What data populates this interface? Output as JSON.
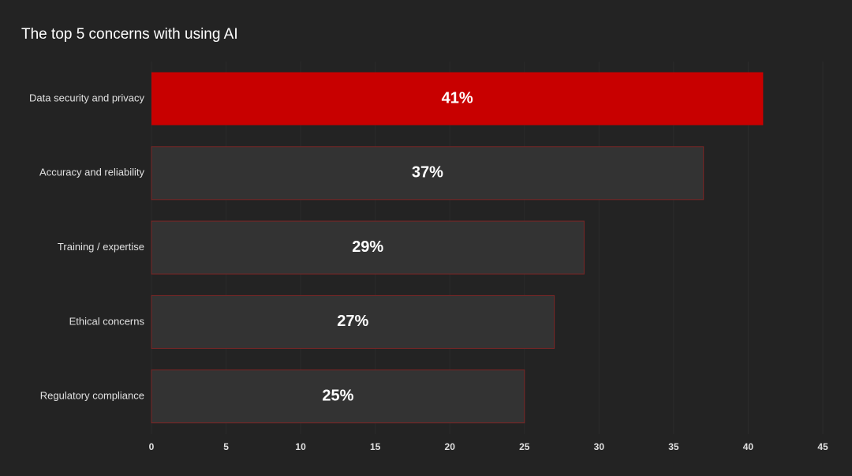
{
  "chart_data": {
    "type": "bar",
    "orientation": "horizontal",
    "title": "The top 5 concerns with using AI",
    "categories": [
      "Data security and privacy",
      "Accuracy and reliability",
      "Training / expertise",
      "Ethical concerns",
      "Regulatory compliance"
    ],
    "values": [
      41,
      37,
      29,
      27,
      25
    ],
    "value_labels": [
      "41%",
      "37%",
      "29%",
      "27%",
      "25%"
    ],
    "colors": [
      "#c80000",
      "#333333",
      "#333333",
      "#333333",
      "#333333"
    ],
    "xlim": [
      0,
      45
    ],
    "xticks": [
      0,
      5,
      10,
      15,
      20,
      25,
      30,
      35,
      40,
      45
    ],
    "grid": true
  }
}
